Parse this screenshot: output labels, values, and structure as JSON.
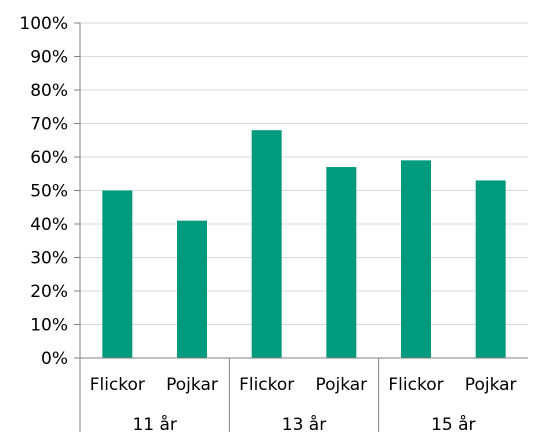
{
  "chart_data": {
    "type": "bar",
    "title": "",
    "xlabel": "",
    "ylabel": "",
    "ylim": [
      0,
      100
    ],
    "yticks": [
      "0%",
      "10%",
      "20%",
      "30%",
      "40%",
      "50%",
      "60%",
      "70%",
      "80%",
      "90%",
      "100%"
    ],
    "grid": true,
    "legend": "none",
    "bar_color": "#009b7d",
    "groups": [
      {
        "label": "11 år",
        "categories": [
          "Flickor",
          "Pojkar"
        ],
        "values": [
          50,
          41
        ]
      },
      {
        "label": "13 år",
        "categories": [
          "Flickor",
          "Pojkar"
        ],
        "values": [
          68,
          57
        ]
      },
      {
        "label": "15 år",
        "categories": [
          "Flickor",
          "Pojkar"
        ],
        "values": [
          59,
          53
        ]
      }
    ]
  }
}
